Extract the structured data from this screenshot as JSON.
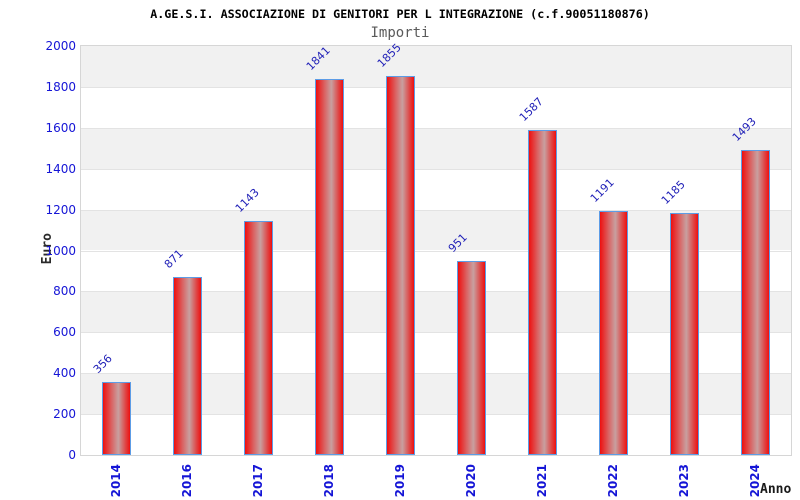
{
  "header": {
    "title": "A.GE.S.I. ASSOCIAZIONE DI GENITORI PER L INTEGRAZIONE (c.f.90051180876)",
    "subtitle": "Importi"
  },
  "chart_data": {
    "type": "bar",
    "title": "A.GE.S.I. ASSOCIAZIONE DI GENITORI PER L INTEGRAZIONE (c.f.90051180876)",
    "subtitle": "Importi",
    "xlabel": "Anno",
    "ylabel": "Euro",
    "categories": [
      "2014",
      "2016",
      "2017",
      "2018",
      "2019",
      "2020",
      "2021",
      "2022",
      "2023",
      "2024"
    ],
    "values": [
      356,
      871,
      1143,
      1841,
      1855,
      951,
      1587,
      1191,
      1185,
      1493
    ],
    "yticks": [
      "0",
      "200",
      "400",
      "600",
      "800",
      "1000",
      "1200",
      "1400",
      "1600",
      "1800",
      "2000"
    ],
    "ytick_values": [
      0,
      200,
      400,
      600,
      800,
      1000,
      1200,
      1400,
      1600,
      1800,
      2000
    ],
    "ylim": [
      0,
      2000
    ],
    "grid": "horizontal-bands-alternating",
    "legend": "none",
    "bar_label_rotation_deg": -45,
    "x_tick_rotation_deg": -90
  },
  "colors": {
    "background": "#ffffff",
    "band_gray": "#f1f1f1",
    "band_white": "#ffffff",
    "gridline": "#e3e3e3",
    "plot_border": "#d6d6d6",
    "tick_text_blue": "#1515d6",
    "value_label_blue": "#2222b8",
    "bar_border_blue": "#5c9ce6",
    "bar_red_edge": "#ee0f0f",
    "bar_red_center_light": "#c8a0a0",
    "title_text": "#000000",
    "subtitle_text": "#5a5a5a",
    "axis_label_text": "#1a1a1a"
  }
}
